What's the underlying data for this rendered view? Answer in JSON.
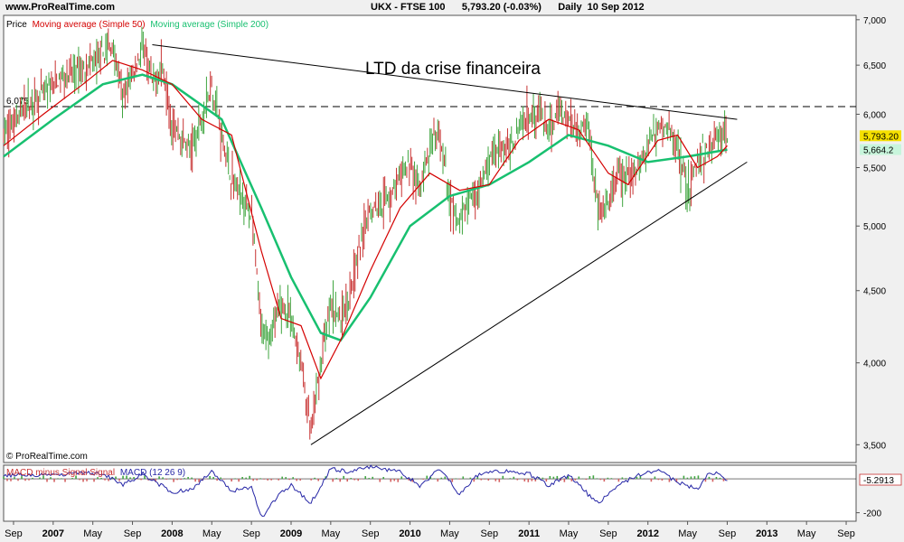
{
  "header": {
    "site": "www.ProRealTime.com",
    "instrument": "UKX - FTSE 100",
    "price_change": "5,793.20 (-0.03%)",
    "period": "Daily  10 Sep 2012"
  },
  "chart_data": [
    {
      "type": "line",
      "legend": {
        "price": "Price",
        "ma50": "Moving average (Simple 50)",
        "ma200": "Moving average (Simple 200)"
      },
      "colors": {
        "price_up": "#3fa53f",
        "price_down": "#c83232",
        "ma50": "#d40000",
        "ma200": "#18c070",
        "trendline": "#000000"
      },
      "annotation": "LTD da crise financeira",
      "reference_line": {
        "value": 6075,
        "label": "6,075",
        "style": "dashed"
      },
      "last_price": {
        "value": 5793.2,
        "label": "5,793.20"
      },
      "ma200_last": {
        "value": 5664.2,
        "label": "5,664.2"
      },
      "y_ticks": [
        {
          "v": 7000,
          "label": "7,000"
        },
        {
          "v": 6500,
          "label": "6,500"
        },
        {
          "v": 6000,
          "label": "6,000"
        },
        {
          "v": 5500,
          "label": "5,500"
        },
        {
          "v": 5000,
          "label": "5,000"
        },
        {
          "v": 4500,
          "label": "4,500"
        },
        {
          "v": 4000,
          "label": "4,000"
        },
        {
          "v": 3500,
          "label": "3,500"
        }
      ],
      "ylim": [
        3400,
        7050
      ],
      "y_scale": "log",
      "x_range": [
        "2006-08",
        "2013-10"
      ],
      "price_points": [
        [
          "2006-08",
          5800
        ],
        [
          "2006-10",
          6050
        ],
        [
          "2006-12",
          6200
        ],
        [
          "2007-02",
          6380
        ],
        [
          "2007-04",
          6450
        ],
        [
          "2007-06",
          6620
        ],
        [
          "2007-07",
          6700
        ],
        [
          "2007-08",
          6150
        ],
        [
          "2007-09",
          6400
        ],
        [
          "2007-10",
          6700
        ],
        [
          "2007-11",
          6300
        ],
        [
          "2007-12",
          6500
        ],
        [
          "2008-01",
          5900
        ],
        [
          "2008-03",
          5650
        ],
        [
          "2008-05",
          6300
        ],
        [
          "2008-06",
          5800
        ],
        [
          "2008-07",
          5400
        ],
        [
          "2008-09",
          5100
        ],
        [
          "2008-10",
          4200
        ],
        [
          "2008-11",
          4200
        ],
        [
          "2008-12",
          4400
        ],
        [
          "2009-01",
          4300
        ],
        [
          "2009-02",
          4000
        ],
        [
          "2009-03",
          3550
        ],
        [
          "2009-04",
          4000
        ],
        [
          "2009-05",
          4400
        ],
        [
          "2009-06",
          4300
        ],
        [
          "2009-07",
          4500
        ],
        [
          "2009-08",
          4850
        ],
        [
          "2009-09",
          5150
        ],
        [
          "2009-10",
          5200
        ],
        [
          "2009-11",
          5250
        ],
        [
          "2009-12",
          5400
        ],
        [
          "2010-01",
          5550
        ],
        [
          "2010-02",
          5300
        ],
        [
          "2010-03",
          5650
        ],
        [
          "2010-04",
          5800
        ],
        [
          "2010-05",
          5200
        ],
        [
          "2010-06",
          5000
        ],
        [
          "2010-07",
          5250
        ],
        [
          "2010-08",
          5300
        ],
        [
          "2010-09",
          5550
        ],
        [
          "2010-10",
          5700
        ],
        [
          "2010-11",
          5650
        ],
        [
          "2010-12",
          5900
        ],
        [
          "2011-01",
          6000
        ],
        [
          "2011-02",
          6050
        ],
        [
          "2011-03",
          5800
        ],
        [
          "2011-04",
          6050
        ],
        [
          "2011-05",
          5950
        ],
        [
          "2011-06",
          5850
        ],
        [
          "2011-07",
          5900
        ],
        [
          "2011-08",
          5100
        ],
        [
          "2011-09",
          5150
        ],
        [
          "2011-10",
          5450
        ],
        [
          "2011-11",
          5400
        ],
        [
          "2011-12",
          5500
        ],
        [
          "2012-01",
          5700
        ],
        [
          "2012-02",
          5900
        ],
        [
          "2012-03",
          5850
        ],
        [
          "2012-04",
          5700
        ],
        [
          "2012-05",
          5300
        ],
        [
          "2012-06",
          5550
        ],
        [
          "2012-07",
          5650
        ],
        [
          "2012-08",
          5800
        ],
        [
          "2012-09",
          5793
        ]
      ],
      "ma50_points": [
        [
          "2006-08",
          5700
        ],
        [
          "2006-12",
          6000
        ],
        [
          "2007-04",
          6300
        ],
        [
          "2007-07",
          6550
        ],
        [
          "2007-10",
          6450
        ],
        [
          "2008-01",
          6300
        ],
        [
          "2008-04",
          5950
        ],
        [
          "2008-07",
          5800
        ],
        [
          "2008-10",
          4800
        ],
        [
          "2008-12",
          4300
        ],
        [
          "2009-02",
          4250
        ],
        [
          "2009-04",
          3900
        ],
        [
          "2009-06",
          4150
        ],
        [
          "2009-09",
          4650
        ],
        [
          "2009-12",
          5150
        ],
        [
          "2010-03",
          5450
        ],
        [
          "2010-06",
          5300
        ],
        [
          "2010-09",
          5350
        ],
        [
          "2010-12",
          5750
        ],
        [
          "2011-03",
          5950
        ],
        [
          "2011-06",
          5850
        ],
        [
          "2011-09",
          5450
        ],
        [
          "2011-11",
          5350
        ],
        [
          "2012-02",
          5750
        ],
        [
          "2012-04",
          5800
        ],
        [
          "2012-06",
          5500
        ],
        [
          "2012-08",
          5600
        ],
        [
          "2012-09",
          5700
        ]
      ],
      "ma200_points": [
        [
          "2006-08",
          5600
        ],
        [
          "2007-01",
          5950
        ],
        [
          "2007-06",
          6300
        ],
        [
          "2007-10",
          6400
        ],
        [
          "2008-01",
          6300
        ],
        [
          "2008-06",
          5950
        ],
        [
          "2008-10",
          5150
        ],
        [
          "2009-01",
          4600
        ],
        [
          "2009-04",
          4200
        ],
        [
          "2009-06",
          4150
        ],
        [
          "2009-09",
          4450
        ],
        [
          "2010-01",
          5000
        ],
        [
          "2010-05",
          5250
        ],
        [
          "2010-09",
          5350
        ],
        [
          "2011-01",
          5550
        ],
        [
          "2011-05",
          5800
        ],
        [
          "2011-09",
          5700
        ],
        [
          "2012-01",
          5550
        ],
        [
          "2012-05",
          5600
        ],
        [
          "2012-09",
          5664
        ]
      ],
      "trendlines": [
        {
          "name": "LTD",
          "from": [
            "2007-11",
            6720
          ],
          "to": [
            "2012-10",
            5950
          ]
        },
        {
          "name": "LTA",
          "from": [
            "2009-03",
            3500
          ],
          "to": [
            "2012-11",
            5550
          ]
        }
      ]
    },
    {
      "type": "line",
      "legend": {
        "hist": "MACD minus Signal Signal",
        "macd": "MACD (12 26 9)"
      },
      "colors": {
        "macd": "#2626a6",
        "hist_pos": "#3fa53f",
        "hist_neg": "#d46060",
        "signal_label": "#c83232"
      },
      "last_value": {
        "value": -5.2913,
        "label": "-5.2913"
      },
      "y_ticks": [
        {
          "v": -200,
          "label": "-200"
        }
      ],
      "ylim": [
        -250,
        80
      ],
      "macd_points": [
        [
          "2006-08",
          20
        ],
        [
          "2007-01",
          25
        ],
        [
          "2007-06",
          35
        ],
        [
          "2007-08",
          -40
        ],
        [
          "2007-10",
          30
        ],
        [
          "2008-01",
          -80
        ],
        [
          "2008-03",
          -60
        ],
        [
          "2008-05",
          40
        ],
        [
          "2008-07",
          -70
        ],
        [
          "2008-09",
          -50
        ],
        [
          "2008-10",
          -230
        ],
        [
          "2008-12",
          -80
        ],
        [
          "2009-01",
          -40
        ],
        [
          "2009-03",
          -140
        ],
        [
          "2009-05",
          60
        ],
        [
          "2009-07",
          40
        ],
        [
          "2009-09",
          70
        ],
        [
          "2009-12",
          40
        ],
        [
          "2010-02",
          -40
        ],
        [
          "2010-04",
          60
        ],
        [
          "2010-06",
          -90
        ],
        [
          "2010-08",
          30
        ],
        [
          "2010-11",
          50
        ],
        [
          "2011-01",
          30
        ],
        [
          "2011-03",
          -40
        ],
        [
          "2011-05",
          20
        ],
        [
          "2011-08",
          -150
        ],
        [
          "2011-10",
          -30
        ],
        [
          "2011-12",
          20
        ],
        [
          "2012-02",
          50
        ],
        [
          "2012-04",
          -20
        ],
        [
          "2012-06",
          -60
        ],
        [
          "2012-07",
          20
        ],
        [
          "2012-08",
          40
        ],
        [
          "2012-09",
          -5
        ]
      ]
    }
  ],
  "x_axis": {
    "ticks": [
      {
        "d": "2006-09",
        "label": "Sep",
        "bold": false
      },
      {
        "d": "2007-01",
        "label": "2007",
        "bold": true
      },
      {
        "d": "2007-05",
        "label": "May",
        "bold": false
      },
      {
        "d": "2007-09",
        "label": "Sep",
        "bold": false
      },
      {
        "d": "2008-01",
        "label": "2008",
        "bold": true
      },
      {
        "d": "2008-05",
        "label": "May",
        "bold": false
      },
      {
        "d": "2008-09",
        "label": "Sep",
        "bold": false
      },
      {
        "d": "2009-01",
        "label": "2009",
        "bold": true
      },
      {
        "d": "2009-05",
        "label": "May",
        "bold": false
      },
      {
        "d": "2009-09",
        "label": "Sep",
        "bold": false
      },
      {
        "d": "2010-01",
        "label": "2010",
        "bold": true
      },
      {
        "d": "2010-05",
        "label": "May",
        "bold": false
      },
      {
        "d": "2010-09",
        "label": "Sep",
        "bold": false
      },
      {
        "d": "2011-01",
        "label": "2011",
        "bold": true
      },
      {
        "d": "2011-05",
        "label": "May",
        "bold": false
      },
      {
        "d": "2011-09",
        "label": "Sep",
        "bold": false
      },
      {
        "d": "2012-01",
        "label": "2012",
        "bold": true
      },
      {
        "d": "2012-05",
        "label": "May",
        "bold": false
      },
      {
        "d": "2012-09",
        "label": "Sep",
        "bold": false
      },
      {
        "d": "2013-01",
        "label": "2013",
        "bold": true
      },
      {
        "d": "2013-05",
        "label": "May",
        "bold": false
      },
      {
        "d": "2013-09",
        "label": "Sep",
        "bold": false
      }
    ]
  },
  "footer": {
    "copyright": "© ProRealTime.com"
  }
}
